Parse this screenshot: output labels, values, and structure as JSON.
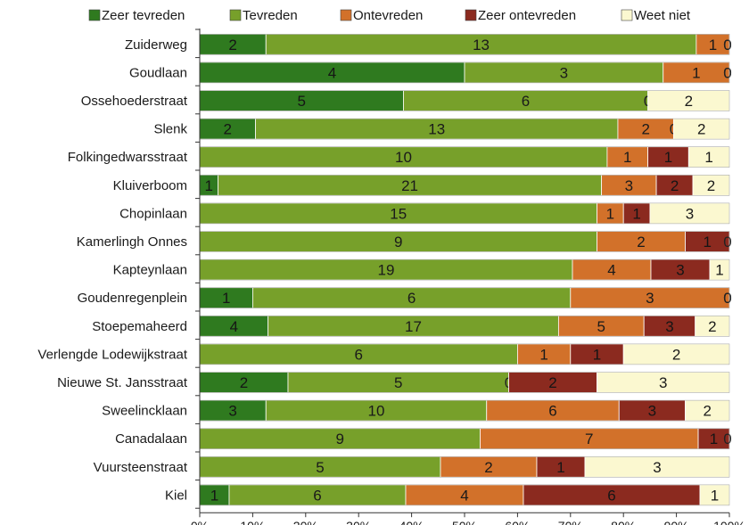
{
  "chart_data": {
    "type": "bar",
    "orientation": "horizontal",
    "stacked": true,
    "normalized": true,
    "categories": [
      "Zuiderweg",
      "Goudlaan",
      "Ossehoederstraat",
      "Slenk",
      "Folkingedwarsstraat",
      "Kluiverboom",
      "Chopinlaan",
      "Kamerlingh Onnes",
      "Kapteynlaan",
      "Goudenregenplein",
      "Stoepemaheerd",
      "Verlengde Lodewijkstraat",
      "Nieuwe St. Jansstraat",
      "Sweelincklaan",
      "Canadalaan",
      "Vuursteenstraat",
      "Kiel"
    ],
    "series": [
      {
        "name": "Zeer tevreden",
        "color": "#2f7a1f",
        "values": [
          2,
          4,
          5,
          2,
          0,
          1,
          0,
          0,
          0,
          1,
          4,
          0,
          2,
          3,
          0,
          0,
          1
        ]
      },
      {
        "name": "Tevreden",
        "color": "#77a02a",
        "values": [
          13,
          3,
          6,
          13,
          10,
          21,
          15,
          9,
          19,
          6,
          17,
          6,
          5,
          10,
          9,
          5,
          6
        ]
      },
      {
        "name": "Ontevreden",
        "color": "#d2712a",
        "values": [
          1,
          1,
          0,
          2,
          1,
          3,
          1,
          2,
          4,
          3,
          5,
          1,
          0,
          6,
          7,
          2,
          4
        ]
      },
      {
        "name": "Zeer ontevreden",
        "color": "#8b2a1f",
        "values": [
          0,
          0,
          0,
          0,
          1,
          2,
          1,
          1,
          3,
          0,
          3,
          1,
          2,
          3,
          1,
          1,
          6
        ]
      },
      {
        "name": "Weet niet",
        "color": "#fbf8d0",
        "values": [
          0,
          0,
          2,
          2,
          1,
          2,
          3,
          0,
          1,
          0,
          2,
          2,
          3,
          2,
          0,
          3,
          1
        ]
      }
    ],
    "xlim": [
      0,
      100
    ],
    "xticks": [
      "0%",
      "10%",
      "20%",
      "30%",
      "40%",
      "50%",
      "60%",
      "70%",
      "80%",
      "90%",
      "100%"
    ],
    "legend_position": "top",
    "grid": false
  }
}
